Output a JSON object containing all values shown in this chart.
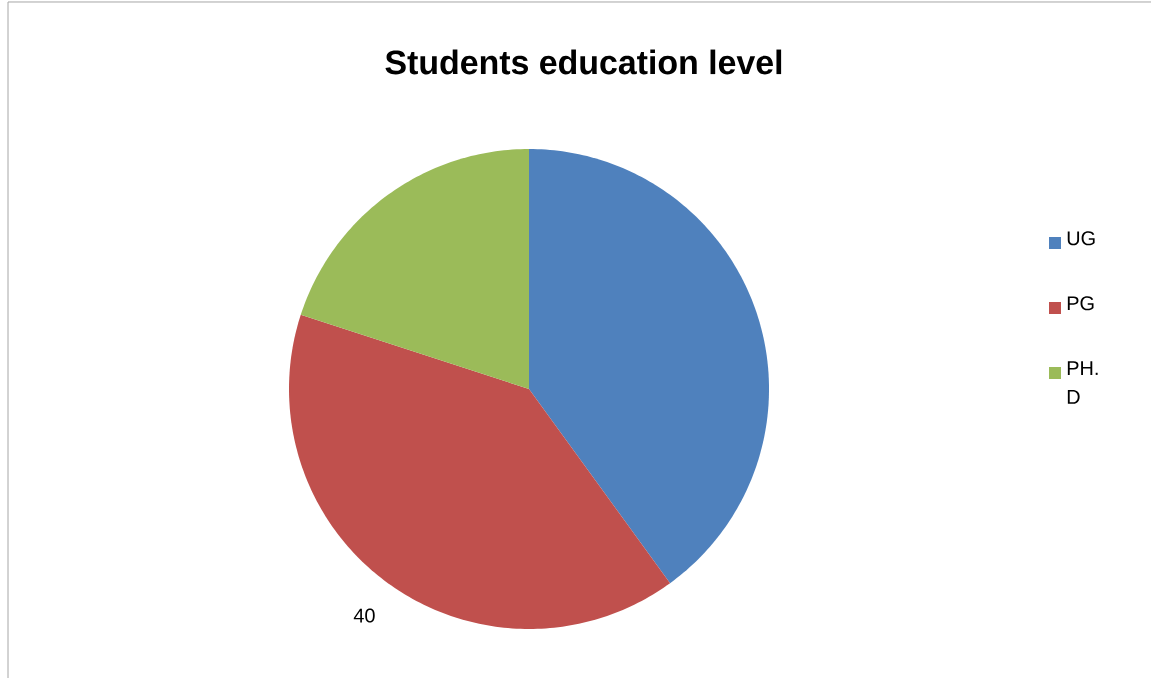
{
  "chart_data": {
    "type": "pie",
    "title": "Students education level",
    "categories": [
      "UG",
      "PG",
      "PH. D"
    ],
    "values": [
      40,
      40,
      20
    ],
    "colors": [
      "#4f81bd",
      "#c0504d",
      "#9bbb59"
    ],
    "value_labels": [
      null,
      "40",
      null
    ],
    "legend": "right"
  }
}
